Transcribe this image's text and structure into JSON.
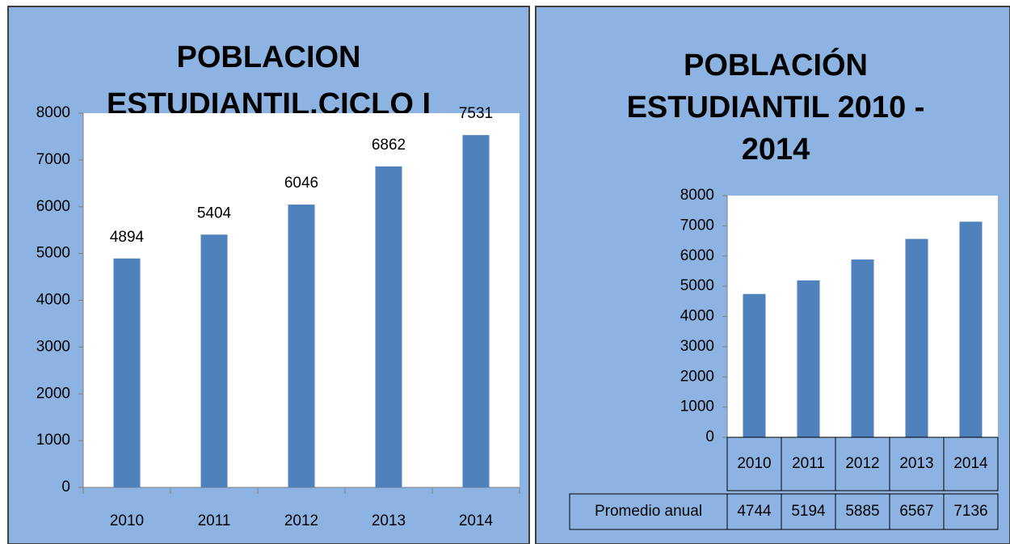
{
  "chart_data": [
    {
      "type": "bar",
      "title": "POBLACION ESTUDIANTIL.CICLO I",
      "categories": [
        "2010",
        "2011",
        "2012",
        "2013",
        "2014"
      ],
      "values": [
        4894,
        5404,
        6046,
        6862,
        7531
      ],
      "color": "#4f81bd",
      "ylim": [
        0,
        8000
      ],
      "yticks": [
        0,
        1000,
        2000,
        3000,
        4000,
        5000,
        6000,
        7000,
        8000
      ],
      "data_labels": true
    },
    {
      "type": "bar",
      "title": "POBLACIÓN ESTUDIANTIL 2010 - 2014",
      "categories": [
        "2010",
        "2011",
        "2012",
        "2013",
        "2014"
      ],
      "series": [
        {
          "name": "Promedio anual",
          "color": "#4f81bd",
          "values": [
            4744,
            5194,
            5885,
            6567,
            7136
          ]
        }
      ],
      "ylim": [
        0,
        8000
      ],
      "yticks": [
        0,
        1000,
        2000,
        3000,
        4000,
        5000,
        6000,
        7000,
        8000
      ],
      "data_table": true
    }
  ]
}
